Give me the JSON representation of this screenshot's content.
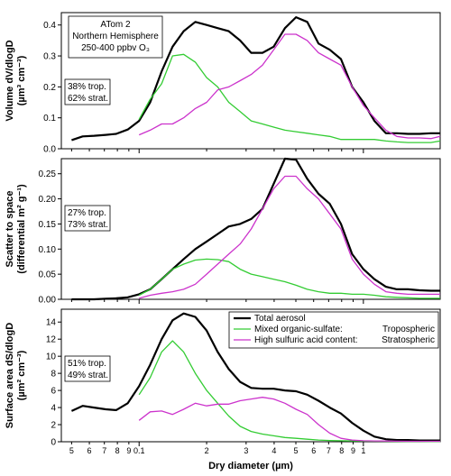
{
  "chart_data": {
    "type": "line",
    "xscale": "log",
    "xlim": [
      0.045,
      2.2
    ],
    "x": [
      0.05,
      0.056,
      0.063,
      0.071,
      0.079,
      0.089,
      0.1,
      0.112,
      0.126,
      0.141,
      0.158,
      0.178,
      0.2,
      0.224,
      0.251,
      0.282,
      0.316,
      0.355,
      0.398,
      0.447,
      0.501,
      0.562,
      0.631,
      0.708,
      0.794,
      0.891,
      1.0,
      1.12,
      1.26,
      1.41,
      1.58,
      1.78,
      2.0,
      2.2
    ],
    "x_ticks": [
      {
        "v": 0.05,
        "label": "5"
      },
      {
        "v": 0.06,
        "label": "6"
      },
      {
        "v": 0.07,
        "label": "7"
      },
      {
        "v": 0.08,
        "label": "8"
      },
      {
        "v": 0.09,
        "label": "9"
      },
      {
        "v": 0.1,
        "label": "0.1"
      },
      {
        "v": 0.2,
        "label": "2"
      },
      {
        "v": 0.3,
        "label": "3"
      },
      {
        "v": 0.4,
        "label": "4"
      },
      {
        "v": 0.5,
        "label": "5"
      },
      {
        "v": 0.6,
        "label": "6"
      },
      {
        "v": 0.7,
        "label": "7"
      },
      {
        "v": 0.8,
        "label": "8"
      },
      {
        "v": 0.9,
        "label": "9"
      },
      {
        "v": 1.0,
        "label": "1"
      }
    ],
    "xlabel": "Dry diameter (µm)",
    "colors": {
      "total": "#000000",
      "trop": "#33cc33",
      "strat": "#cc33cc"
    },
    "panels": [
      {
        "ylabel_line1": "Volume dV/dlogD",
        "ylabel_line2": "(µm³ cm⁻³)",
        "ylim": [
          0,
          0.44
        ],
        "yticks": [
          {
            "v": 0.0,
            "label": "0.0"
          },
          {
            "v": 0.1,
            "label": "0.1"
          },
          {
            "v": 0.2,
            "label": "0.2"
          },
          {
            "v": 0.3,
            "label": "0.3"
          },
          {
            "v": 0.4,
            "label": "0.4"
          }
        ],
        "textbox": [
          "ATom 2",
          "Northern Hemisphere",
          "250-400 ppbv O₃"
        ],
        "fraction_box": [
          "38% trop.",
          "62% strat."
        ],
        "series": [
          {
            "key": "total",
            "values": [
              0.028,
              0.04,
              0.042,
              0.045,
              0.048,
              0.062,
              0.09,
              0.15,
              0.25,
              0.33,
              0.38,
              0.41,
              0.4,
              0.39,
              0.38,
              0.35,
              0.31,
              0.31,
              0.33,
              0.39,
              0.425,
              0.41,
              0.34,
              0.32,
              0.29,
              0.2,
              0.15,
              0.09,
              0.05,
              0.05,
              0.048,
              0.048,
              0.05,
              0.05
            ]
          },
          {
            "key": "trop",
            "start": 6,
            "values": [
              0.095,
              0.16,
              0.21,
              0.3,
              0.305,
              0.28,
              0.23,
              0.2,
              0.15,
              0.12,
              0.09,
              0.08,
              0.07,
              0.06,
              0.055,
              0.05,
              0.045,
              0.04,
              0.03,
              0.03,
              0.03,
              0.03,
              0.025,
              0.022,
              0.02,
              0.02,
              0.02,
              0.025
            ]
          },
          {
            "key": "strat",
            "start": 6,
            "values": [
              0.045,
              0.06,
              0.08,
              0.08,
              0.1,
              0.13,
              0.15,
              0.19,
              0.2,
              0.22,
              0.24,
              0.27,
              0.32,
              0.37,
              0.37,
              0.35,
              0.31,
              0.29,
              0.27,
              0.2,
              0.14,
              0.1,
              0.06,
              0.04,
              0.035,
              0.035,
              0.033,
              0.04
            ]
          }
        ]
      },
      {
        "ylabel_line1": "Scatter to space",
        "ylabel_line2": "(differential m² g⁻¹)",
        "ylim": [
          0,
          0.28
        ],
        "yticks": [
          {
            "v": 0.0,
            "label": "0.00"
          },
          {
            "v": 0.05,
            "label": "0.05"
          },
          {
            "v": 0.1,
            "label": "0.10"
          },
          {
            "v": 0.15,
            "label": "0.15"
          },
          {
            "v": 0.2,
            "label": "0.20"
          },
          {
            "v": 0.25,
            "label": "0.25"
          }
        ],
        "fraction_box": [
          "27% trop.",
          "73% strat."
        ],
        "series": [
          {
            "key": "total",
            "values": [
              0.0,
              0.0,
              0.0,
              0.001,
              0.002,
              0.004,
              0.01,
              0.02,
              0.04,
              0.06,
              0.08,
              0.1,
              0.115,
              0.13,
              0.145,
              0.15,
              0.16,
              0.18,
              0.23,
              0.28,
              0.278,
              0.24,
              0.21,
              0.19,
              0.15,
              0.09,
              0.06,
              0.04,
              0.025,
              0.02,
              0.02,
              0.018,
              0.017,
              0.017
            ]
          },
          {
            "key": "trop",
            "start": 6,
            "values": [
              0.008,
              0.02,
              0.04,
              0.06,
              0.07,
              0.078,
              0.08,
              0.079,
              0.075,
              0.06,
              0.05,
              0.045,
              0.04,
              0.035,
              0.028,
              0.02,
              0.015,
              0.012,
              0.012,
              0.01,
              0.01,
              0.008,
              0.005,
              0.004,
              0.003,
              0.002,
              0.002,
              0.002
            ]
          },
          {
            "key": "strat",
            "start": 6,
            "values": [
              0.002,
              0.008,
              0.012,
              0.015,
              0.02,
              0.03,
              0.05,
              0.07,
              0.09,
              0.11,
              0.14,
              0.18,
              0.22,
              0.245,
              0.245,
              0.22,
              0.2,
              0.17,
              0.14,
              0.08,
              0.05,
              0.03,
              0.015,
              0.012,
              0.01,
              0.01,
              0.01,
              0.01
            ]
          }
        ]
      },
      {
        "ylabel_line1": "Surface area dS/dlogD",
        "ylabel_line2": "(µm² cm⁻³)",
        "ylim": [
          0,
          15.5
        ],
        "yticks": [
          {
            "v": 0,
            "label": "0"
          },
          {
            "v": 2,
            "label": "2"
          },
          {
            "v": 4,
            "label": "4"
          },
          {
            "v": 6,
            "label": "6"
          },
          {
            "v": 8,
            "label": "8"
          },
          {
            "v": 10,
            "label": "10"
          },
          {
            "v": 12,
            "label": "12"
          },
          {
            "v": 14,
            "label": "14"
          }
        ],
        "fraction_box": [
          "51% trop.",
          "49% strat."
        ],
        "legend": [
          {
            "key": "total",
            "label": "Total aerosol"
          },
          {
            "key": "trop",
            "label": "Mixed organic-sulfate:",
            "suffix": "Tropospheric"
          },
          {
            "key": "strat",
            "label": "High sulfuric acid content:",
            "suffix": "Stratospheric"
          }
        ],
        "series": [
          {
            "key": "total",
            "values": [
              3.6,
              4.2,
              4.0,
              3.8,
              3.7,
              4.5,
              6.5,
              9.0,
              12.0,
              14.2,
              15.0,
              14.6,
              13.0,
              10.5,
              8.5,
              7.0,
              6.3,
              6.2,
              6.2,
              6.0,
              5.9,
              5.5,
              4.8,
              4.0,
              3.3,
              2.2,
              1.3,
              0.6,
              0.3,
              0.2,
              0.2,
              0.15,
              0.15,
              0.15
            ]
          },
          {
            "key": "trop",
            "start": 6,
            "values": [
              5.5,
              7.5,
              10.5,
              11.8,
              10.5,
              8.0,
              6.0,
              4.5,
              3.0,
              1.8,
              1.2,
              0.9,
              0.7,
              0.5,
              0.4,
              0.3,
              0.2,
              0.15,
              0.12,
              0.1,
              0.08,
              0.06,
              0.05,
              0.04,
              0.03,
              0.03,
              0.02,
              0.02
            ]
          },
          {
            "key": "strat",
            "start": 6,
            "values": [
              2.5,
              3.5,
              3.6,
              3.2,
              3.8,
              4.5,
              4.2,
              4.4,
              4.4,
              4.8,
              5.0,
              5.2,
              5.0,
              4.5,
              3.8,
              3.2,
              2.0,
              1.0,
              0.4,
              0.2,
              0.12,
              0.1,
              0.08,
              0.06,
              0.05,
              0.05,
              0.05,
              0.05
            ]
          }
        ]
      }
    ]
  }
}
